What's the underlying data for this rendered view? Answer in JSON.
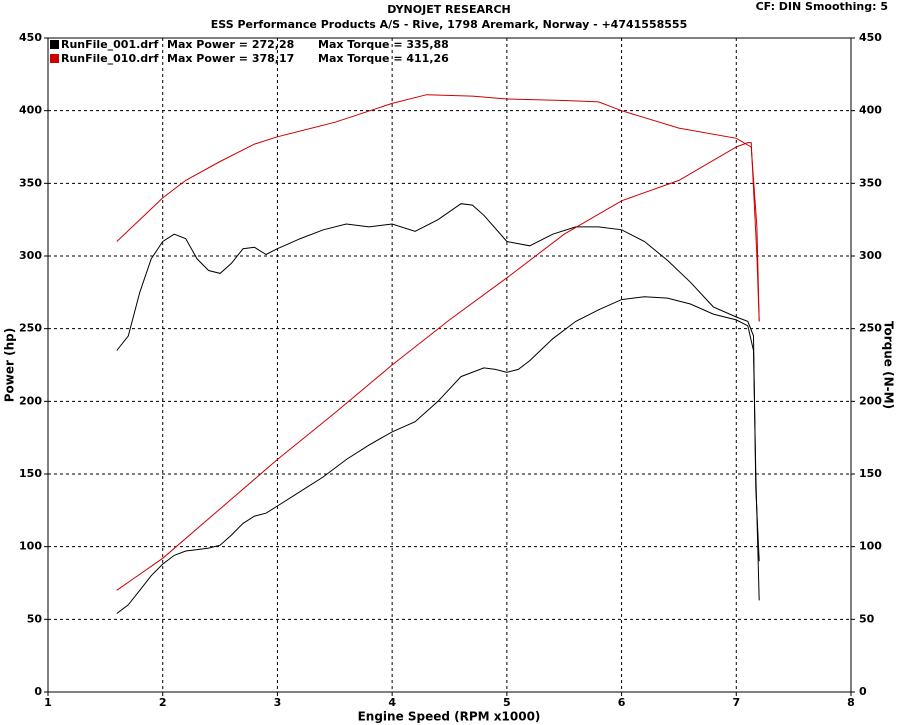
{
  "chart_data": {
    "type": "line",
    "title": "DYNOJET RESEARCH",
    "subtitle": "ESS Performance Products A/S - Rive, 1798 Aremark, Norway - +4741558555",
    "settings_text": "CF: DIN  Smoothing: 5",
    "x_label": "Engine Speed (RPM x1000)",
    "y_label": "Power (hp)",
    "y2_label": "Torque (N-M)",
    "xlim": [
      1,
      8
    ],
    "xticks": [
      1,
      2,
      3,
      4,
      5,
      6,
      7,
      8
    ],
    "ylim": [
      0,
      450
    ],
    "yticks": [
      0,
      50,
      100,
      150,
      200,
      250,
      300,
      350,
      400,
      450
    ],
    "y2lim": [
      0,
      450
    ],
    "y2ticks": [
      0,
      50,
      100,
      150,
      200,
      250,
      300,
      350,
      400,
      450
    ],
    "grid": true,
    "legend": "top-left",
    "series": [
      {
        "name": "RunFile_001.drf",
        "max_power": "Max Power = 272,28",
        "max_torque": "Max Torque = 335,88",
        "color": "#000000",
        "x": [
          1.6,
          1.7,
          1.8,
          1.9,
          2.0,
          2.1,
          2.2,
          2.3,
          2.4,
          2.5,
          2.6,
          2.7,
          2.8,
          2.9,
          3.0,
          3.2,
          3.4,
          3.6,
          3.8,
          4.0,
          4.2,
          4.4,
          4.6,
          4.8,
          4.9,
          5.0,
          5.1,
          5.2,
          5.4,
          5.6,
          5.8,
          6.0,
          6.2,
          6.4,
          6.6,
          6.8,
          7.0,
          7.1,
          7.15,
          7.17,
          7.2
        ],
        "values": [
          54,
          60,
          70,
          80,
          88,
          94,
          97,
          98,
          99,
          101,
          108,
          116,
          121,
          123,
          128,
          138,
          148,
          160,
          170,
          179,
          186,
          200,
          217,
          223,
          222,
          220,
          222,
          228,
          243,
          255,
          263,
          270,
          272,
          271,
          267,
          260,
          256,
          252,
          235,
          150,
          63
        ]
      },
      {
        "color": "#000000",
        "axis": "y2",
        "x": [
          1.6,
          1.7,
          1.8,
          1.9,
          2.0,
          2.1,
          2.2,
          2.3,
          2.4,
          2.5,
          2.6,
          2.7,
          2.8,
          2.9,
          3.0,
          3.2,
          3.4,
          3.6,
          3.8,
          4.0,
          4.2,
          4.4,
          4.6,
          4.7,
          4.8,
          5.0,
          5.2,
          5.4,
          5.6,
          5.8,
          6.0,
          6.2,
          6.4,
          6.6,
          6.8,
          7.0,
          7.1,
          7.15,
          7.17,
          7.2
        ],
        "values": [
          235,
          245,
          275,
          298,
          310,
          315,
          312,
          298,
          290,
          288,
          295,
          305,
          306,
          301,
          305,
          312,
          318,
          322,
          320,
          322,
          317,
          325,
          336,
          335,
          328,
          310,
          307,
          315,
          320,
          320,
          318,
          310,
          297,
          282,
          265,
          258,
          255,
          245,
          140,
          90
        ]
      },
      {
        "name": "RunFile_010.drf",
        "max_power": "Max Power = 378,17",
        "max_torque": "Max Torque = 411,26",
        "color": "#cc0000",
        "x": [
          1.6,
          2.0,
          2.5,
          3.0,
          3.5,
          4.0,
          4.5,
          5.0,
          5.5,
          6.0,
          6.5,
          7.0,
          7.1,
          7.13,
          7.18,
          7.2
        ],
        "values": [
          70,
          92,
          126,
          160,
          192,
          225,
          256,
          285,
          315,
          338,
          352,
          375,
          378,
          378,
          300,
          255
        ]
      },
      {
        "color": "#cc0000",
        "axis": "y2",
        "x": [
          1.6,
          1.8,
          2.0,
          2.2,
          2.5,
          2.8,
          3.0,
          3.5,
          4.0,
          4.3,
          4.7,
          5.0,
          5.5,
          5.8,
          6.0,
          6.5,
          7.0,
          7.13,
          7.18,
          7.2
        ],
        "values": [
          310,
          325,
          340,
          352,
          365,
          377,
          382,
          392,
          405,
          411,
          410,
          408,
          407,
          406,
          400,
          388,
          381,
          375,
          320,
          255
        ]
      }
    ]
  }
}
